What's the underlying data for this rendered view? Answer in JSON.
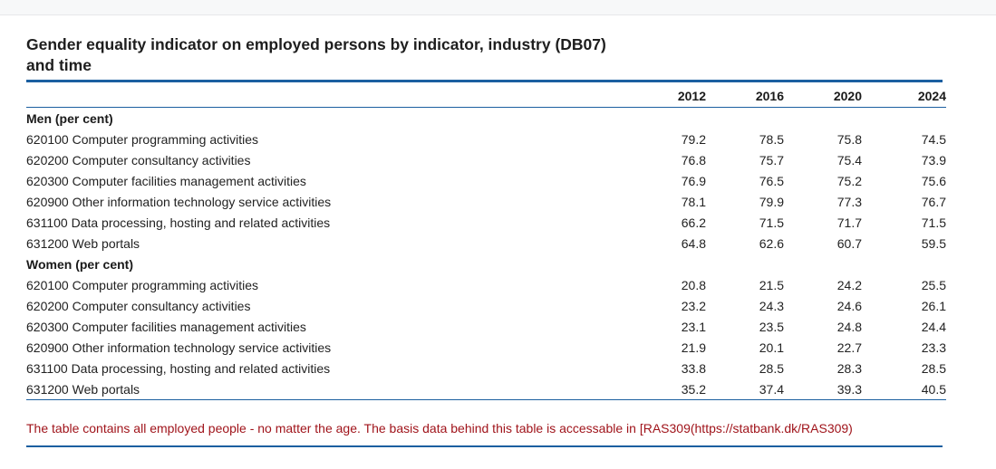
{
  "title": "Gender equality indicator on employed persons by indicator, industry (DB07) and time",
  "years": [
    "2012",
    "2016",
    "2020",
    "2024"
  ],
  "groups": [
    {
      "label": "Men (per cent)",
      "rows": [
        {
          "label": "620100 Computer programming activities",
          "values": [
            "79.2",
            "78.5",
            "75.8",
            "74.5"
          ]
        },
        {
          "label": "620200 Computer consultancy activities",
          "values": [
            "76.8",
            "75.7",
            "75.4",
            "73.9"
          ]
        },
        {
          "label": "620300 Computer facilities management activities",
          "values": [
            "76.9",
            "76.5",
            "75.2",
            "75.6"
          ]
        },
        {
          "label": "620900 Other information technology service activities",
          "values": [
            "78.1",
            "79.9",
            "77.3",
            "76.7"
          ]
        },
        {
          "label": "631100 Data processing, hosting and related activities",
          "values": [
            "66.2",
            "71.5",
            "71.7",
            "71.5"
          ]
        },
        {
          "label": "631200 Web portals",
          "values": [
            "64.8",
            "62.6",
            "60.7",
            "59.5"
          ]
        }
      ]
    },
    {
      "label": "Women (per cent)",
      "rows": [
        {
          "label": "620100 Computer programming activities",
          "values": [
            "20.8",
            "21.5",
            "24.2",
            "25.5"
          ]
        },
        {
          "label": "620200 Computer consultancy activities",
          "values": [
            "23.2",
            "24.3",
            "24.6",
            "26.1"
          ]
        },
        {
          "label": "620300 Computer facilities management activities",
          "values": [
            "23.1",
            "23.5",
            "24.8",
            "24.4"
          ]
        },
        {
          "label": "620900 Other information technology service activities",
          "values": [
            "21.9",
            "20.1",
            "22.7",
            "23.3"
          ]
        },
        {
          "label": "631100 Data processing, hosting and related activities",
          "values": [
            "33.8",
            "28.5",
            "28.3",
            "28.5"
          ]
        },
        {
          "label": "631200 Web portals",
          "values": [
            "35.2",
            "37.4",
            "39.3",
            "40.5"
          ]
        }
      ]
    }
  ],
  "note": "The table contains all employed people - no matter the age. The basis data behind this table is accessable in [RAS309(https://statbank.dk/RAS309)"
}
